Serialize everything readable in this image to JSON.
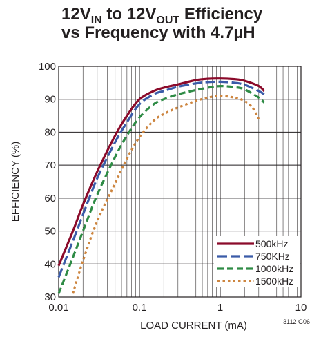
{
  "chart_data": {
    "type": "line",
    "title_lines": [
      [
        {
          "text": "12V",
          "sub": false
        },
        {
          "text": "IN",
          "sub": true
        },
        {
          "text": " to 12V",
          "sub": false
        },
        {
          "text": "OUT",
          "sub": true
        },
        {
          "text": " Efficiency",
          "sub": false
        }
      ],
      [
        {
          "text": "vs Frequency with 4.7µH",
          "sub": false
        }
      ]
    ],
    "xlabel": "LOAD CURRENT (mA)",
    "ylabel": "EFFICIENCY (%)",
    "x_scale": "log",
    "xlim": [
      0.01,
      10
    ],
    "ylim": [
      30,
      100
    ],
    "x_ticks": [
      0.01,
      0.1,
      1,
      10
    ],
    "x_tick_labels": [
      "0.01",
      "0.1",
      "1",
      "10"
    ],
    "y_ticks": [
      30,
      40,
      50,
      60,
      70,
      80,
      90,
      100
    ],
    "y_tick_labels": [
      "30",
      "40",
      "50",
      "60",
      "70",
      "80",
      "90",
      "100"
    ],
    "grid": true,
    "legend_position": "bottom-right",
    "figure_id": "3112 G06",
    "series": [
      {
        "name": "500kHz",
        "color": "#8b0a2a",
        "dash": "solid",
        "x": [
          0.01,
          0.015,
          0.02,
          0.03,
          0.05,
          0.07,
          0.1,
          0.15,
          0.2,
          0.3,
          0.5,
          0.7,
          1,
          1.5,
          2,
          3,
          3.5
        ],
        "y": [
          39.5,
          50,
          58,
          68,
          79,
          85,
          90,
          92.5,
          93.5,
          94.5,
          95.8,
          96.2,
          96.3,
          96.1,
          95.6,
          94,
          92.5
        ]
      },
      {
        "name": "750KHz",
        "color": "#3a5ba8",
        "dash": "long-dash",
        "x": [
          0.01,
          0.015,
          0.02,
          0.03,
          0.05,
          0.07,
          0.1,
          0.15,
          0.2,
          0.3,
          0.5,
          0.7,
          1,
          1.5,
          2,
          3,
          3.5
        ],
        "y": [
          36,
          47,
          55,
          66,
          77,
          83,
          88.5,
          91.5,
          92.5,
          93.8,
          94.8,
          95.2,
          95.3,
          95,
          94.4,
          92.5,
          91.5
        ]
      },
      {
        "name": "1000kHz",
        "color": "#2e8b45",
        "dash": "dash",
        "x": [
          0.01,
          0.015,
          0.02,
          0.03,
          0.05,
          0.07,
          0.1,
          0.15,
          0.2,
          0.3,
          0.5,
          0.7,
          1,
          1.5,
          2,
          3,
          3.5
        ],
        "y": [
          31,
          42,
          50,
          61,
          72.5,
          79,
          84.5,
          88.5,
          90,
          91.5,
          92.8,
          93.5,
          94,
          93.7,
          93,
          90.5,
          89
        ]
      },
      {
        "name": "1500kHz",
        "color": "#cd853f",
        "dash": "dot",
        "x": [
          0.015,
          0.02,
          0.03,
          0.05,
          0.07,
          0.1,
          0.15,
          0.2,
          0.3,
          0.5,
          0.7,
          1,
          1.5,
          2,
          2.5,
          3
        ],
        "y": [
          31,
          41,
          53,
          64.5,
          72,
          78.5,
          83.5,
          85.5,
          87.5,
          89.5,
          90.5,
          91,
          90.5,
          89.5,
          87.5,
          84
        ]
      }
    ]
  }
}
